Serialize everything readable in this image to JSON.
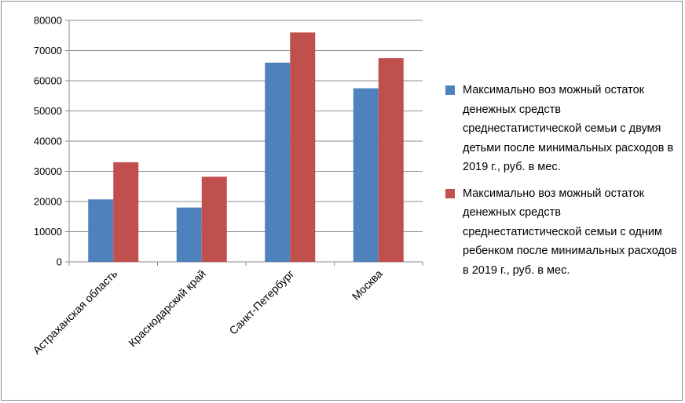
{
  "chart_data": {
    "type": "bar",
    "categories": [
      "Астраханская область",
      "Краснодарский край",
      "Санкт-Петербург",
      "Москва"
    ],
    "series": [
      {
        "name": "Максимально воз можный остаток денежных средств среднестатистической семьи с двумя детьми после минимальных расходов в 2019 г., руб. в мес.",
        "color": "#4f81bd",
        "values": [
          20700,
          18000,
          66000,
          57500
        ]
      },
      {
        "name": "Максимально воз можный остаток денежных средств среднестатистической семьи с одним ребенком  после минимальных расходов в 2019 г., руб. в мес.",
        "color": "#c0504d",
        "values": [
          33000,
          28200,
          76000,
          67500
        ]
      }
    ],
    "ylim": [
      0,
      80000
    ],
    "yticks": [
      "0",
      "10000",
      "20000",
      "30000",
      "40000",
      "50000",
      "60000",
      "70000",
      "80000"
    ],
    "grid": true,
    "legend_position": "right"
  }
}
